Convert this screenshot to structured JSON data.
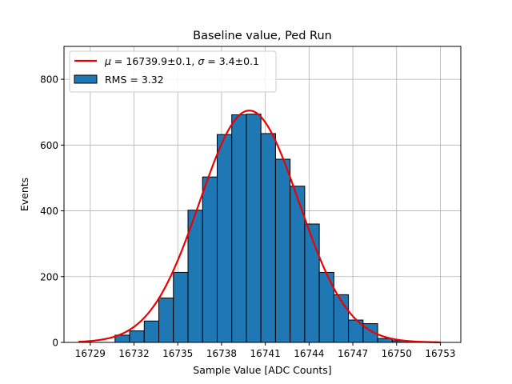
{
  "chart_data": {
    "type": "bar",
    "title": "Baseline value, Ped Run",
    "xlabel": "Sample Value [ADC Counts]",
    "ylabel": "Events",
    "xlim": [
      16727.2,
      16754.4
    ],
    "ylim": [
      0,
      900
    ],
    "xticks": [
      16729,
      16732,
      16735,
      16738,
      16741,
      16744,
      16747,
      16750,
      16753
    ],
    "yticks": [
      0,
      200,
      400,
      600,
      800
    ],
    "grid": true,
    "legend_position": "top-left",
    "bin_width": 1.0,
    "histogram": {
      "name": "RMS = 3.32",
      "color": "#1f77b4",
      "bin_left_edges": [
        16730.7,
        16731.7,
        16732.7,
        16733.7,
        16734.7,
        16735.7,
        16736.7,
        16737.7,
        16738.7,
        16739.7,
        16740.7,
        16741.7,
        16742.7,
        16743.7,
        16744.7,
        16745.7,
        16746.7,
        16747.7,
        16748.7,
        16749.7,
        16750.7
      ],
      "counts": [
        22,
        35,
        65,
        135,
        213,
        402,
        503,
        632,
        692,
        694,
        635,
        557,
        475,
        360,
        213,
        145,
        68,
        57,
        12,
        5,
        2
      ]
    },
    "fit": {
      "name_math": "μ",
      "name_line1": " = 16739.9±0.1, ",
      "name_sigma": "σ",
      "name_line2": " = 3.4±0.1",
      "color": "#ee0000",
      "mu": 16739.9,
      "sigma": 3.4,
      "amplitude": 705,
      "x_range": [
        16728.2,
        16753.0
      ]
    }
  }
}
